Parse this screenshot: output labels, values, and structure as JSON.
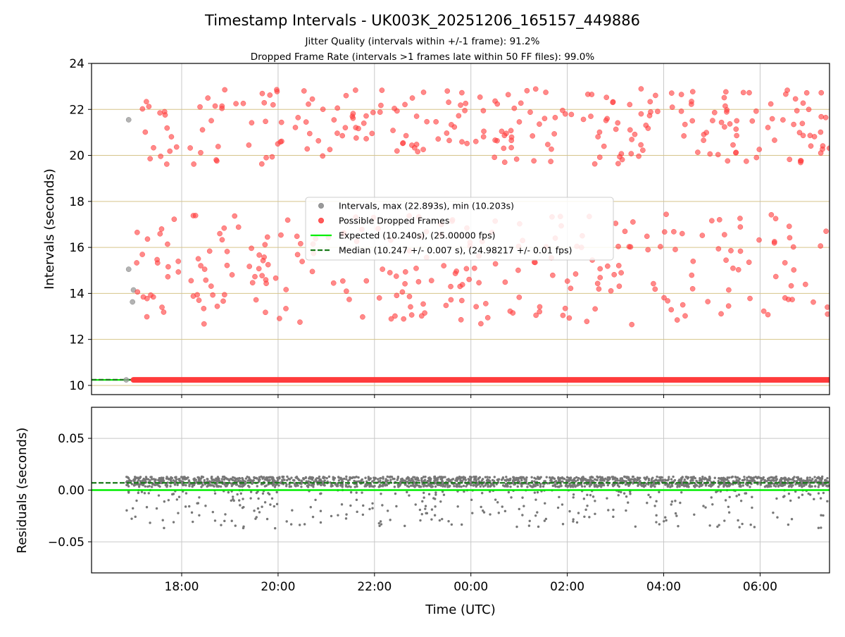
{
  "chart_data": [
    {
      "type": "scatter",
      "title": "Timestamp Intervals - UK003K_20251206_165157_449886",
      "subtitle_lines": [
        "Jitter Quality (intervals within +/-1 frame): 91.2%",
        "Dropped Frame Rate (intervals >1 frames late within 50 FF files): 99.0%"
      ],
      "xlabel": "",
      "ylabel": "Intervals (seconds)",
      "xlim_hours": [
        16.13,
        7.44
      ],
      "ylim": [
        9.6,
        24
      ],
      "yticks": [
        10,
        12,
        14,
        16,
        18,
        20,
        22,
        24
      ],
      "grid": true,
      "y_gridlines_color": "#d6c48a",
      "legend_placement": "center",
      "legend": [
        {
          "label": "Intervals, max (22.893s), min (10.203s)",
          "kind": "marker",
          "color": "#999999"
        },
        {
          "label": "Possible Dropped Frames",
          "kind": "marker",
          "color": "#ff3b3b"
        },
        {
          "label": "Expected (10.240s), (25.00000 fps)",
          "kind": "line",
          "color": "#00ee00"
        },
        {
          "label": "Median (10.247 +/- 0.007 s), (24.98217 +/- 0.01 fps)",
          "kind": "dashed",
          "color": "#1a7a1a"
        }
      ],
      "series": [
        {
          "name": "Intervals",
          "color": "#999999",
          "points": [
            [
              16.9,
              21.55
            ],
            [
              16.9,
              15.05
            ],
            [
              16.98,
              13.63
            ],
            [
              17.0,
              14.15
            ],
            [
              16.85,
              10.24
            ]
          ]
        },
        {
          "name": "Expected",
          "color": "#00ee00",
          "value": 10.24
        },
        {
          "name": "Median",
          "color": "#1a7a1a",
          "value": 10.247
        },
        {
          "name": "Possible Dropped Frames",
          "color": "#ff3b3b",
          "baseline_value": 10.24,
          "baseline_x_range": [
            17.0,
            7.44
          ],
          "x_range": [
            17.05,
            7.44
          ],
          "y_clusters": [
            [
              19.6,
              22.9
            ],
            [
              12.6,
              17.5
            ]
          ],
          "count_per_cluster": 260,
          "seed": 4242
        }
      ]
    },
    {
      "type": "scatter",
      "xlabel": "Time (UTC)",
      "ylabel": "Residuals (seconds)",
      "xlim_hours": [
        16.13,
        7.44
      ],
      "xtick_hours": [
        18,
        20,
        22,
        0,
        2,
        4,
        6
      ],
      "xticks": [
        "18:00",
        "20:00",
        "22:00",
        "00:00",
        "02:00",
        "04:00",
        "06:00"
      ],
      "ylim": [
        -0.08,
        0.08
      ],
      "yticks": [
        0.05,
        0.0,
        -0.05
      ],
      "ytick_labels": [
        "0.05",
        "0.00",
        "−0.05"
      ],
      "grid": true,
      "series": [
        {
          "name": "Residuals",
          "color": "#777777",
          "x_range": [
            16.85,
            7.44
          ],
          "band": [
            0.003,
            0.013
          ],
          "outlier_range": [
            -0.037,
            0.0
          ],
          "band_count": 1800,
          "outlier_count": 320,
          "seed": 9117
        },
        {
          "name": "Expected",
          "color": "#00ee00",
          "value": 0.0
        },
        {
          "name": "Median",
          "color": "#1a7a1a",
          "value": 0.007
        }
      ]
    }
  ]
}
